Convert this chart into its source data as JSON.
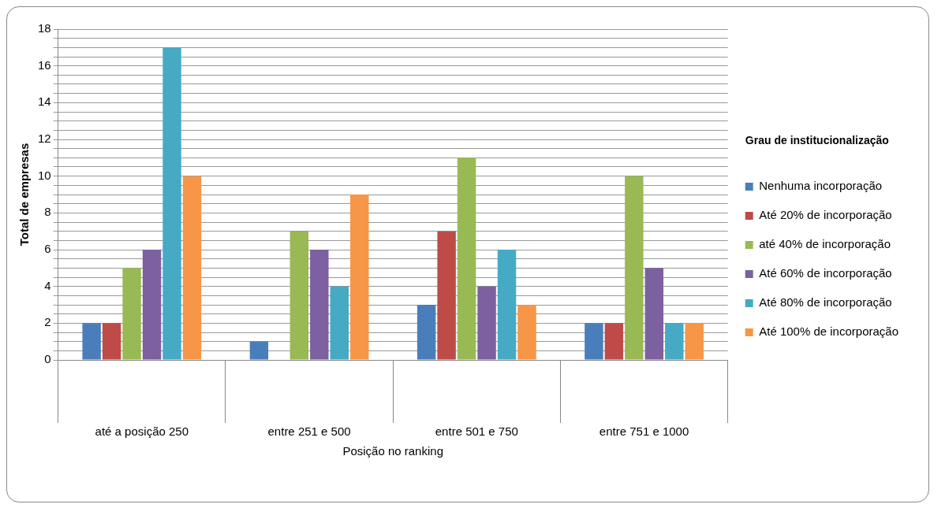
{
  "chart_data": {
    "type": "bar",
    "xlabel": "Posição no ranking",
    "ylabel": "Total de empresas",
    "legend_title": "Grau de institucionalização",
    "categories": [
      "até a posição 250",
      "entre 251 e 500",
      "entre 501 e 750",
      "entre 751 e 1000"
    ],
    "series": [
      {
        "name": "Nenhuma incorporação",
        "color": "#4a7ebb",
        "values": [
          2,
          1,
          3,
          2
        ]
      },
      {
        "name": "Até 20% de incorporação",
        "color": "#be4b48",
        "values": [
          2,
          0,
          7,
          2
        ]
      },
      {
        "name": "até 40% de incorporação",
        "color": "#98b954",
        "values": [
          5,
          7,
          11,
          10
        ]
      },
      {
        "name": "Até 60% de incorporação",
        "color": "#7d60a0",
        "values": [
          6,
          6,
          4,
          5
        ]
      },
      {
        "name": "Até 80% de incorporação",
        "color": "#46aac5",
        "values": [
          17,
          4,
          6,
          2
        ]
      },
      {
        "name": "Até 100% de incorporação",
        "color": "#f79646",
        "values": [
          10,
          9,
          3,
          2
        ]
      }
    ],
    "ylim": [
      0,
      18
    ],
    "yticks": [
      0,
      {
        "value": 0.5,
        "label": null
      },
      {
        "value": 1,
        "label": null
      },
      {
        "value": 1.5,
        "label": null
      },
      2,
      {
        "value": 2.5,
        "label": null
      },
      {
        "value": 3,
        "label": null
      },
      {
        "value": 3.5,
        "label": null
      },
      4,
      {
        "value": 4.5,
        "label": null
      },
      {
        "value": 5,
        "label": null
      },
      {
        "value": 5.5,
        "label": null
      },
      6,
      {
        "value": 6.5,
        "label": null
      },
      {
        "value": 7,
        "label": null
      },
      {
        "value": 7.5,
        "label": null
      },
      8,
      {
        "value": 8.5,
        "label": null
      },
      {
        "value": 9,
        "label": null
      },
      {
        "value": 9.5,
        "label": null
      },
      10,
      {
        "value": 10.5,
        "label": null
      },
      {
        "value": 11,
        "label": null
      },
      {
        "value": 11.5,
        "label": null
      },
      12,
      {
        "value": 12.5,
        "label": null
      },
      {
        "value": 13,
        "label": null
      },
      {
        "value": 13.5,
        "label": null
      },
      14,
      {
        "value": 14.5,
        "label": null
      },
      {
        "value": 15,
        "label": null
      },
      {
        "value": 15.5,
        "label": null
      },
      16,
      {
        "value": 16.5,
        "label": null
      },
      {
        "value": 17,
        "label": null
      },
      {
        "value": 17.5,
        "label": null
      },
      18
    ],
    "grid": "y",
    "legend": "right"
  }
}
